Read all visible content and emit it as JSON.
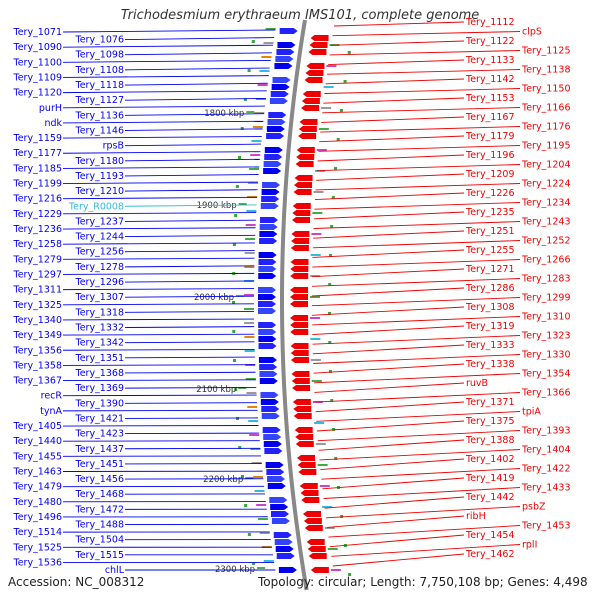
{
  "header": {
    "title": "Trichodesmium erythraeum IMS101, complete genome"
  },
  "footer": {
    "accession": "Accession: NC_008312",
    "topology": "Topology: circular; Length: 7,750,108 bp; Genes: 4,498"
  },
  "colors": {
    "forward": "#0000ee",
    "reverse": "#ee0000",
    "rna": "#33bbdd",
    "backbone": "#888888"
  },
  "scale_ticks": [
    "1800 kbp",
    "1900 kbp",
    "2000 kbp",
    "2100 kbp",
    "2200 kbp",
    "2300 kbp"
  ],
  "forward_labels": [
    "Tery_1071",
    "Tery_1076",
    "Tery_1090",
    "Tery_1098",
    "Tery_1100",
    "Tery_1108",
    "Tery_1109",
    "Tery_1118",
    "Tery_1120",
    "Tery_1127",
    "purH",
    "Tery_1136",
    "ndk",
    "Tery_1146",
    "Tery_1159",
    "rpsB",
    "Tery_1177",
    "Tery_1180",
    "Tery_1185",
    "Tery_1193",
    "Tery_1199",
    "Tery_1210",
    "Tery_1216",
    "Tery_R0008",
    "Tery_1229",
    "Tery_1237",
    "Tery_1236",
    "Tery_1244",
    "Tery_1258",
    "Tery_1256",
    "Tery_1279",
    "Tery_1278",
    "Tery_1297",
    "Tery_1296",
    "Tery_1311",
    "Tery_1307",
    "Tery_1325",
    "Tery_1318",
    "Tery_1340",
    "Tery_1332",
    "Tery_1349",
    "Tery_1342",
    "Tery_1356",
    "Tery_1351",
    "Tery_1358",
    "Tery_1368",
    "Tery_1367",
    "Tery_1369",
    "recR",
    "Tery_1390",
    "tynA",
    "Tery_1421",
    "Tery_1405",
    "Tery_1423",
    "Tery_1440",
    "Tery_1437",
    "Tery_1455",
    "Tery_1451",
    "Tery_1463",
    "Tery_1456",
    "Tery_1479",
    "Tery_1468",
    "Tery_1480",
    "Tery_1472",
    "Tery_1496",
    "Tery_1488",
    "Tery_1514",
    "Tery_1504",
    "Tery_1525",
    "Tery_1515",
    "Tery_1536",
    "chlL"
  ],
  "reverse_labels": [
    "Tery_1112",
    "clpS",
    "Tery_1122",
    "Tery_1125",
    "Tery_1133",
    "Tery_1138",
    "Tery_1142",
    "Tery_1150",
    "Tery_1153",
    "Tery_1166",
    "Tery_1167",
    "Tery_1176",
    "Tery_1179",
    "Tery_1195",
    "Tery_1196",
    "Tery_1204",
    "Tery_1209",
    "Tery_1224",
    "Tery_1226",
    "Tery_1234",
    "Tery_1235",
    "Tery_1243",
    "Tery_1251",
    "Tery_1252",
    "Tery_1255",
    "Tery_1266",
    "Tery_1271",
    "Tery_1283",
    "Tery_1286",
    "Tery_1299",
    "Tery_1308",
    "Tery_1310",
    "Tery_1319",
    "Tery_1323",
    "Tery_1333",
    "Tery_1330",
    "Tery_1338",
    "Tery_1354",
    "ruvB",
    "Tery_1366",
    "Tery_1371",
    "tpiA",
    "Tery_1375",
    "Tery_1393",
    "Tery_1388",
    "Tery_1404",
    "Tery_1402",
    "Tery_1422",
    "Tery_1419",
    "Tery_1433",
    "Tery_1442",
    "psbZ",
    "ribH",
    "Tery_1453",
    "Tery_1454",
    "rplI",
    "Tery_1462"
  ]
}
